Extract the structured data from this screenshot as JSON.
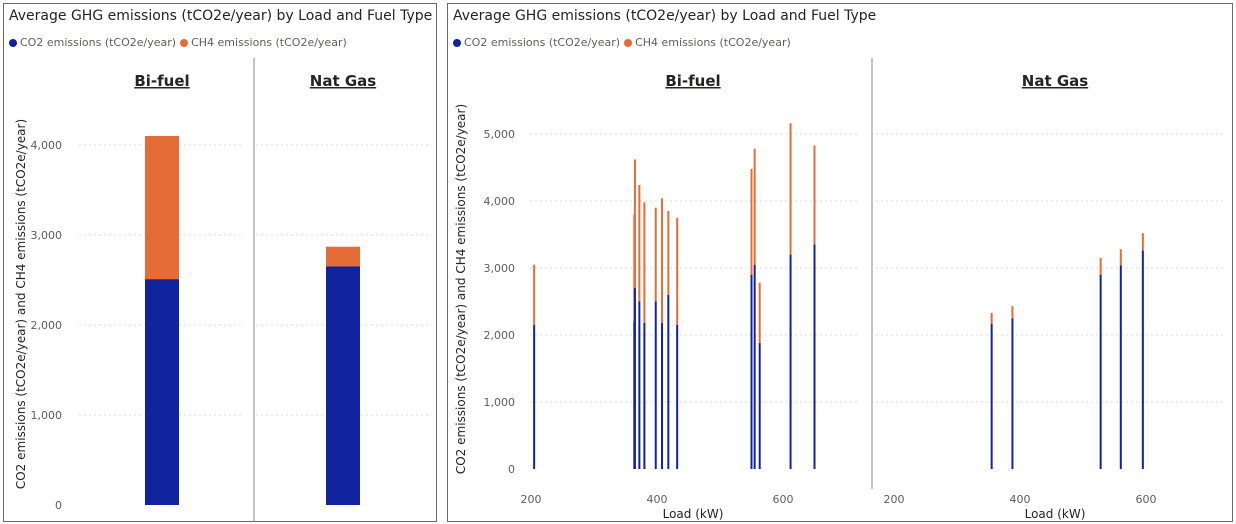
{
  "colors": {
    "co2": "#12239e",
    "ch4": "#e66c37",
    "grid": "#d9d9d9",
    "divider": "#8a8a8a"
  },
  "left_visual": {
    "title": "Average GHG emissions (tCO2e/year) by Load and Fuel Type",
    "legend": [
      {
        "label": "CO2 emissions (tCO2e/year)",
        "color": "#12239e"
      },
      {
        "label": "CH4 emissions (tCO2e/year)",
        "color": "#e66c37"
      }
    ]
  },
  "right_visual": {
    "title": "Average GHG emissions (tCO2e/year) by Load and Fuel Type",
    "legend": [
      {
        "label": "CO2 emissions (tCO2e/year)",
        "color": "#12239e"
      },
      {
        "label": "CH4 emissions (tCO2e/year)",
        "color": "#e66c37"
      }
    ]
  },
  "chart_data": [
    {
      "type": "bar",
      "stacked": true,
      "title": "Average GHG emissions (tCO2e/year) by Load and Fuel Type",
      "ylabel": "CO2 emissions (tCO2e/year) and CH4 emissions (tCO2e/year)",
      "xlabel": "",
      "ylim": [
        0,
        4500
      ],
      "yticks": [
        0,
        1000,
        2000,
        3000,
        4000
      ],
      "ytick_labels": [
        "0",
        "1,000",
        "2,000",
        "3,000",
        "4,000"
      ],
      "grid": true,
      "legend_position": "top-left",
      "panels": [
        "Bi-fuel",
        "Nat Gas"
      ],
      "series": [
        {
          "name": "CO2 emissions (tCO2e/year)",
          "values": [
            2510,
            2650
          ]
        },
        {
          "name": "CH4 emissions (tCO2e/year)",
          "values": [
            1590,
            220
          ]
        }
      ]
    },
    {
      "type": "bar",
      "stacked": true,
      "title": "Average GHG emissions (tCO2e/year) by Load and Fuel Type",
      "ylabel": "CO2 emissions (tCO2e/year) and CH4 emissions (tCO2e/year)",
      "xlabel": "Load (kW)",
      "ylim": [
        0,
        5500
      ],
      "yticks": [
        0,
        1000,
        2000,
        3000,
        4000,
        5000
      ],
      "ytick_labels": [
        "0",
        "1,000",
        "2,000",
        "3,000",
        "4,000",
        "5,000"
      ],
      "xlim": [
        190,
        700
      ],
      "xticks": [
        200,
        400,
        600
      ],
      "grid": true,
      "legend_position": "top-left",
      "panels": [
        {
          "name": "Bi-fuel",
          "x": [
            205,
            364,
            365,
            372,
            380,
            398,
            408,
            418,
            432,
            550,
            555,
            563,
            612,
            650
          ],
          "series": [
            {
              "name": "CO2 emissions (tCO2e/year)",
              "values": [
                2150,
                2200,
                2700,
                2500,
                2180,
                2500,
                2180,
                2600,
                2150,
                2900,
                3050,
                1880,
                3200,
                3350
              ]
            },
            {
              "name": "CH4 emissions (tCO2e/year)",
              "values": [
                900,
                1600,
                1920,
                1740,
                1800,
                1400,
                1860,
                1250,
                1600,
                1580,
                1730,
                900,
                1960,
                1480
              ]
            }
          ]
        },
        {
          "name": "Nat Gas",
          "x": [
            355,
            388,
            528,
            560,
            595
          ],
          "series": [
            {
              "name": "CO2 emissions (tCO2e/year)",
              "values": [
                2170,
                2250,
                2900,
                3040,
                3260
              ]
            },
            {
              "name": "CH4 emissions (tCO2e/year)",
              "values": [
                160,
                180,
                250,
                240,
                260
              ]
            }
          ]
        }
      ]
    }
  ]
}
